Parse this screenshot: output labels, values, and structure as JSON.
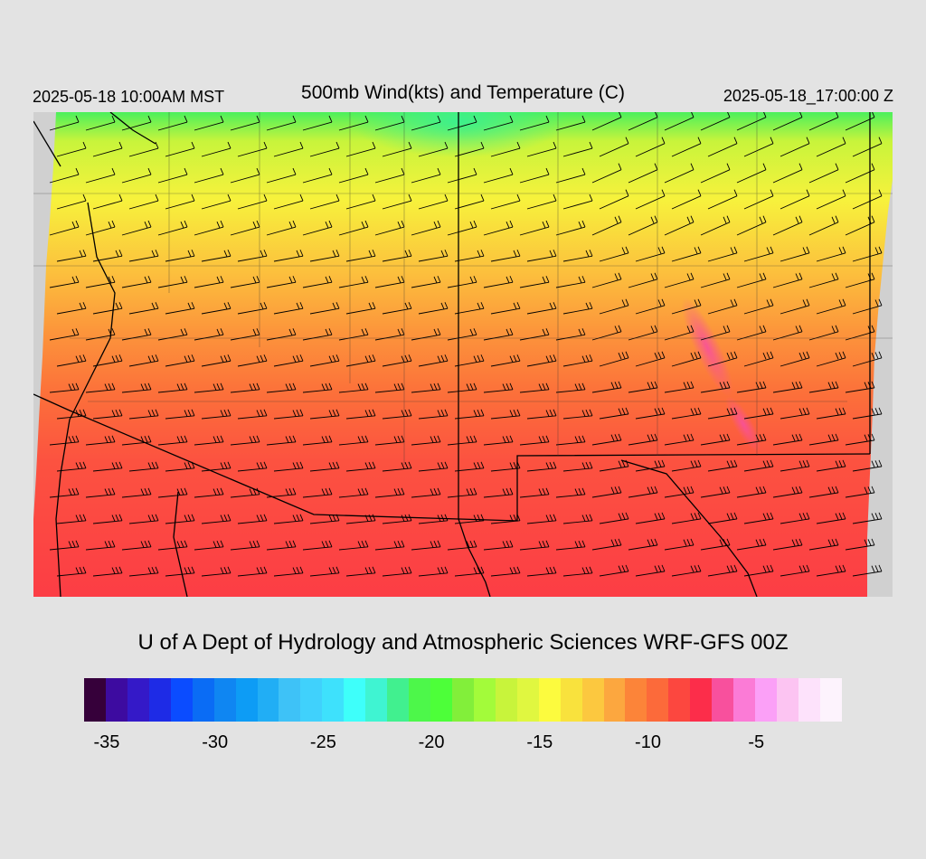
{
  "header": {
    "valid_local": "2025-05-18 10:00AM MST",
    "title": "500mb Wind(kts) and Temperature (C)",
    "valid_utc": "2025-05-18_17:00:00 Z"
  },
  "credit": "U of A Dept of Hydrology and Atmospheric Sciences WRF-GFS 00Z",
  "colorbar": {
    "colors": [
      "#36003a",
      "#3d0ba0",
      "#3419c8",
      "#1e2be6",
      "#0b4cff",
      "#0a6cf5",
      "#0f86f2",
      "#0d9cf5",
      "#21aef5",
      "#3ec2f7",
      "#40d1fc",
      "#3ee1fc",
      "#3efffa",
      "#3ff4d2",
      "#41f08f",
      "#4df74a",
      "#4dff39",
      "#82ef3a",
      "#a3fb3a",
      "#c8f43b",
      "#e0f740",
      "#fcfb3e",
      "#f9e23d",
      "#fcc83f",
      "#fca73f",
      "#fc8439",
      "#fc6a3a",
      "#fc473f",
      "#fc2d4a",
      "#f8509d",
      "#fb7bd6",
      "#fba0f7",
      "#fcc4f2",
      "#fde2fb",
      "#fdf3fd"
    ],
    "tick_labels": [
      "-35",
      "-30",
      "-25",
      "-20",
      "-15",
      "-10",
      "-5"
    ],
    "tick_values": [
      -35,
      -30,
      -25,
      -20,
      -15,
      -10,
      -5
    ],
    "min": -36,
    "max": -1
  },
  "map": {
    "field": "500mb temperature (C) shaded, wind barbs (kts)",
    "field_colors": {
      "coldest_north": "#4bf05c",
      "cool": "#f7f23c",
      "mid": "#fca23c",
      "warm": "#fc713a",
      "warmest_south": "#fc3d45",
      "hot_spot": "#f8509d"
    }
  }
}
